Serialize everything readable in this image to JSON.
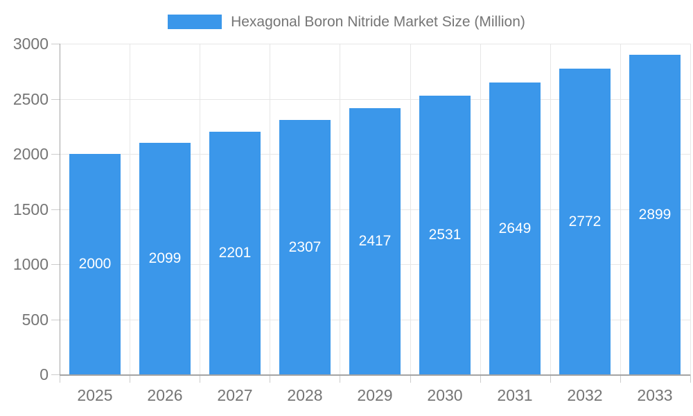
{
  "legend": {
    "label": "Hexagonal Boron Nitride Market Size (Million)"
  },
  "colors": {
    "bar": "#3b97ea",
    "bar_label_text": "#ffffff",
    "axis_text": "#757575",
    "grid": "#e6e6e6",
    "axis_line": "#a3a3a3",
    "tick": "#cccccc"
  },
  "chart_data": {
    "type": "bar",
    "title": "Hexagonal Boron Nitride Market Size (Million)",
    "categories": [
      "2025",
      "2026",
      "2027",
      "2028",
      "2029",
      "2030",
      "2031",
      "2032",
      "2033"
    ],
    "values": [
      2000,
      2099,
      2201,
      2307,
      2417,
      2531,
      2649,
      2772,
      2899
    ],
    "xlabel": "",
    "ylabel": "",
    "ylim": [
      0,
      3000
    ],
    "y_ticks": [
      0,
      500,
      1000,
      1500,
      2000,
      2500,
      3000
    ],
    "grid": true,
    "legend_position": "top",
    "bar_labels_inside": true
  }
}
